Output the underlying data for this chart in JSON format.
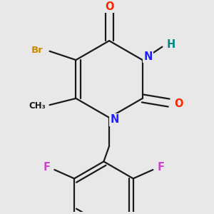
{
  "bg_color": "#e8e8e8",
  "bond_color": "#1a1a1a",
  "bond_width": 1.6,
  "atom_colors": {
    "O": "#ff2200",
    "N": "#2222ff",
    "H": "#008888",
    "Br": "#cc8800",
    "F": "#cc44cc",
    "C": "#1a1a1a",
    "CH3": "#1a1a1a"
  },
  "font_size": 10.5
}
